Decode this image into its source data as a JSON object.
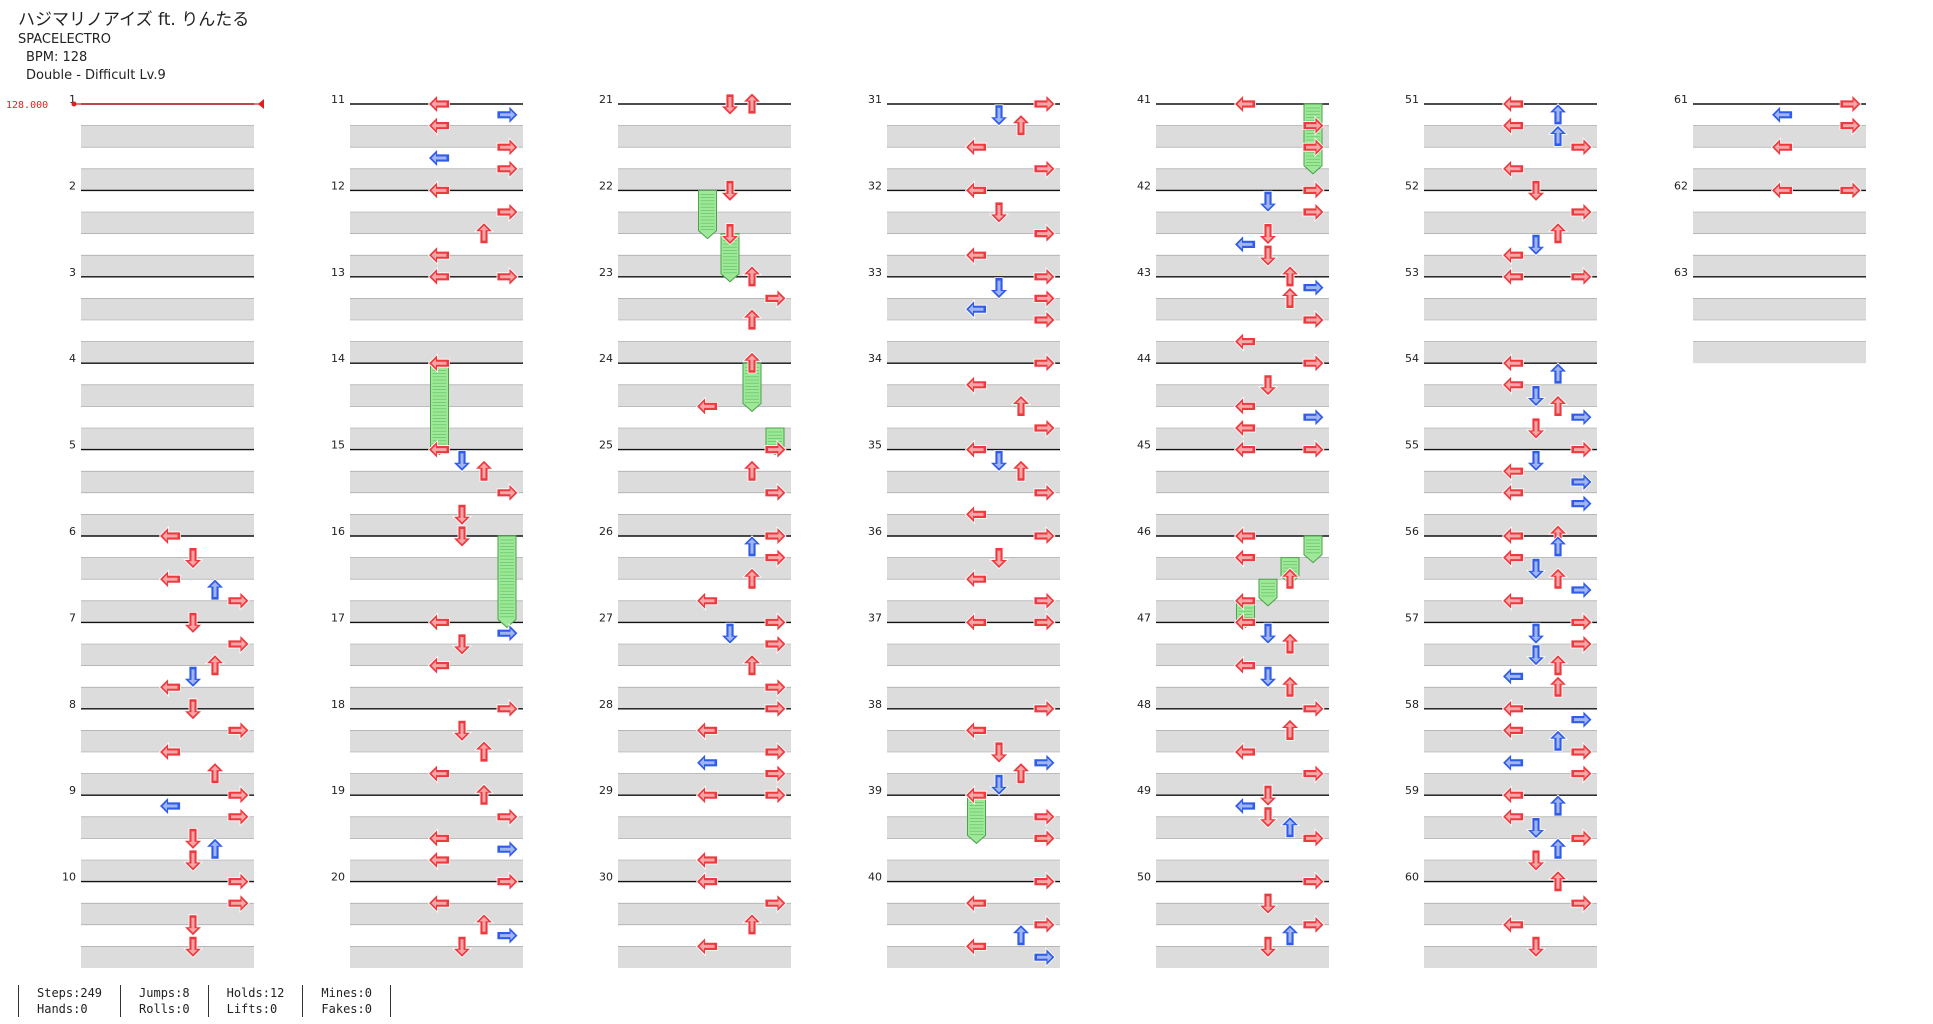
{
  "song": {
    "title": "ハジマリノアイズ ft. りんたる",
    "artist": "SPACELECTRO",
    "bpm_label": "BPM: 128",
    "difficulty_label": "Double - Difficult  Lv.9"
  },
  "bpm_marker": "128.000",
  "colors": {
    "quarter": "#ee3a3f",
    "eighth": "#2f5ce8",
    "hold": "#9fe89a",
    "beat_band": "#dcdcdc",
    "bpm": "#e02020"
  },
  "measures_per_column": 10,
  "total_measures": 63,
  "measure_labels": [
    "1",
    "2",
    "3",
    "4",
    "5",
    "6",
    "7",
    "8",
    "9",
    "10",
    "11",
    "12",
    "13",
    "14",
    "15",
    "16",
    "17",
    "18",
    "19",
    "20",
    "21",
    "22",
    "23",
    "24",
    "25",
    "26",
    "27",
    "28",
    "29",
    "30",
    "31",
    "32",
    "33",
    "34",
    "35",
    "36",
    "37",
    "38",
    "39",
    "40",
    "41",
    "42",
    "43",
    "44",
    "45",
    "46",
    "47",
    "48",
    "49",
    "50",
    "51",
    "52",
    "53",
    "54",
    "55",
    "56",
    "57",
    "58",
    "59",
    "60",
    "61",
    "62",
    "63"
  ],
  "notes": [
    [
      6,
      0,
      "L",
      "q"
    ],
    [
      6,
      0.25,
      "D",
      "q"
    ],
    [
      6,
      0.5,
      "L",
      "q"
    ],
    [
      6,
      0.625,
      "U",
      "e"
    ],
    [
      6,
      0.75,
      "R",
      "q"
    ],
    [
      7,
      0,
      "D",
      "q"
    ],
    [
      7,
      0.25,
      "R",
      "q"
    ],
    [
      7,
      0.5,
      "U",
      "q"
    ],
    [
      7,
      0.625,
      "D",
      "e"
    ],
    [
      7,
      0.75,
      "L",
      "q"
    ],
    [
      8,
      0,
      "D",
      "q"
    ],
    [
      8,
      0.25,
      "R",
      "q"
    ],
    [
      8,
      0.5,
      "L",
      "q"
    ],
    [
      8,
      0.75,
      "U",
      "q"
    ],
    [
      9,
      0,
      "R",
      "q"
    ],
    [
      9,
      0.125,
      "L",
      "e"
    ],
    [
      9,
      0.25,
      "R",
      "q"
    ],
    [
      9,
      0.5,
      "D",
      "q"
    ],
    [
      9,
      0.625,
      "U",
      "e"
    ],
    [
      9,
      0.75,
      "D",
      "q"
    ],
    [
      10,
      0,
      "R",
      "q"
    ],
    [
      10,
      0.25,
      "R",
      "q"
    ],
    [
      10,
      0.5,
      "D",
      "q"
    ],
    [
      10,
      0.75,
      "D",
      "q"
    ],
    [
      11,
      0,
      "L",
      "q"
    ],
    [
      11,
      0.125,
      "R",
      "e"
    ],
    [
      11,
      0.25,
      "L",
      "q"
    ],
    [
      11,
      0.5,
      "R",
      "q"
    ],
    [
      11,
      0.625,
      "L",
      "e"
    ],
    [
      11,
      0.75,
      "R",
      "q"
    ],
    [
      12,
      0,
      "L",
      "q"
    ],
    [
      12,
      0.25,
      "R",
      "q"
    ],
    [
      12,
      0.5,
      "U",
      "q"
    ],
    [
      12,
      0.75,
      "L",
      "q"
    ],
    [
      13,
      0,
      "L",
      "q"
    ],
    [
      13,
      0,
      "R",
      "q"
    ],
    [
      14,
      0,
      "L",
      "q"
    ],
    [
      15,
      0,
      "L",
      "q"
    ],
    [
      15,
      0.125,
      "D",
      "e"
    ],
    [
      15,
      0.25,
      "U",
      "q"
    ],
    [
      15,
      0.5,
      "R",
      "q"
    ],
    [
      15,
      0.75,
      "D",
      "q"
    ],
    [
      16,
      0,
      "D",
      "q"
    ],
    [
      17,
      0,
      "L",
      "q"
    ],
    [
      17,
      0.125,
      "R",
      "e"
    ],
    [
      17,
      0.25,
      "D",
      "q"
    ],
    [
      17,
      0.5,
      "L",
      "q"
    ],
    [
      18,
      0,
      "R",
      "q"
    ],
    [
      18,
      0.25,
      "D",
      "q"
    ],
    [
      18,
      0.5,
      "U",
      "q"
    ],
    [
      18,
      0.75,
      "L",
      "q"
    ],
    [
      19,
      0,
      "U",
      "q"
    ],
    [
      19,
      0.25,
      "R",
      "q"
    ],
    [
      19,
      0.5,
      "L",
      "q"
    ],
    [
      19,
      0.625,
      "R",
      "e"
    ],
    [
      19,
      0.75,
      "L",
      "q"
    ],
    [
      20,
      0,
      "R",
      "q"
    ],
    [
      20,
      0.25,
      "L",
      "q"
    ],
    [
      20,
      0.5,
      "U",
      "q"
    ],
    [
      20,
      0.625,
      "R",
      "e"
    ],
    [
      20,
      0.75,
      "D",
      "q"
    ],
    [
      21,
      0,
      "D",
      "q"
    ],
    [
      21,
      0,
      "U",
      "q"
    ],
    [
      22,
      0,
      "D",
      "q"
    ],
    [
      22,
      0.5,
      "D",
      "q"
    ],
    [
      23,
      0,
      "U",
      "q"
    ],
    [
      23,
      0.25,
      "R",
      "q"
    ],
    [
      23,
      0.5,
      "U",
      "q"
    ],
    [
      24,
      0,
      "U",
      "q"
    ],
    [
      24,
      0.5,
      "L",
      "q"
    ],
    [
      25,
      0,
      "R",
      "q"
    ],
    [
      25,
      0.25,
      "U",
      "q"
    ],
    [
      25,
      0.5,
      "R",
      "q"
    ],
    [
      26,
      0,
      "R",
      "q"
    ],
    [
      26,
      0.125,
      "U",
      "e"
    ],
    [
      26,
      0.25,
      "R",
      "q"
    ],
    [
      26,
      0.5,
      "U",
      "q"
    ],
    [
      26,
      0.75,
      "L",
      "q"
    ],
    [
      27,
      0,
      "R",
      "q"
    ],
    [
      27,
      0.125,
      "D",
      "e"
    ],
    [
      27,
      0.25,
      "R",
      "q"
    ],
    [
      27,
      0.5,
      "U",
      "q"
    ],
    [
      27,
      0.75,
      "R",
      "q"
    ],
    [
      28,
      0,
      "R",
      "q"
    ],
    [
      28,
      0.25,
      "L",
      "q"
    ],
    [
      28,
      0.5,
      "R",
      "q"
    ],
    [
      28,
      0.625,
      "L",
      "e"
    ],
    [
      28,
      0.75,
      "R",
      "q"
    ],
    [
      29,
      0,
      "R",
      "q"
    ],
    [
      29,
      0,
      "L",
      "q"
    ],
    [
      29,
      0.75,
      "L",
      "q"
    ],
    [
      30,
      0,
      "L",
      "q"
    ],
    [
      30,
      0.25,
      "R",
      "q"
    ],
    [
      30,
      0.5,
      "U",
      "q"
    ],
    [
      30,
      0.75,
      "L",
      "q"
    ],
    [
      31,
      0,
      "R",
      "q"
    ],
    [
      31,
      0.125,
      "D",
      "e"
    ],
    [
      31,
      0.25,
      "U",
      "q"
    ],
    [
      31,
      0.5,
      "L",
      "q"
    ],
    [
      31,
      0.75,
      "R",
      "q"
    ],
    [
      32,
      0,
      "L",
      "q"
    ],
    [
      32,
      0.25,
      "D",
      "q"
    ],
    [
      32,
      0.5,
      "R",
      "q"
    ],
    [
      32,
      0.75,
      "L",
      "q"
    ],
    [
      33,
      0,
      "R",
      "q"
    ],
    [
      33,
      0.125,
      "D",
      "e"
    ],
    [
      33,
      0.25,
      "R",
      "q"
    ],
    [
      33,
      0.375,
      "L",
      "e"
    ],
    [
      33,
      0.5,
      "R",
      "q"
    ],
    [
      34,
      0,
      "R",
      "q"
    ],
    [
      34,
      0.25,
      "L",
      "q"
    ],
    [
      34,
      0.5,
      "U",
      "q"
    ],
    [
      34,
      0.75,
      "R",
      "q"
    ],
    [
      35,
      0,
      "L",
      "q"
    ],
    [
      35,
      0.125,
      "D",
      "e"
    ],
    [
      35,
      0.25,
      "U",
      "q"
    ],
    [
      35,
      0.5,
      "R",
      "q"
    ],
    [
      35,
      0.75,
      "L",
      "q"
    ],
    [
      36,
      0,
      "R",
      "q"
    ],
    [
      36,
      0.25,
      "D",
      "q"
    ],
    [
      36,
      0.5,
      "L",
      "q"
    ],
    [
      36,
      0.75,
      "R",
      "q"
    ],
    [
      37,
      0,
      "R",
      "q"
    ],
    [
      37,
      0,
      "L",
      "q"
    ],
    [
      38,
      0,
      "R",
      "q"
    ],
    [
      38,
      0.25,
      "L",
      "q"
    ],
    [
      38,
      0.5,
      "D",
      "q"
    ],
    [
      38,
      0.625,
      "R",
      "e"
    ],
    [
      38,
      0.75,
      "U",
      "q"
    ],
    [
      38,
      0.875,
      "D",
      "e"
    ],
    [
      39,
      0,
      "L",
      "q"
    ],
    [
      39,
      0.25,
      "R",
      "q"
    ],
    [
      39,
      0.5,
      "R",
      "q"
    ],
    [
      40,
      0,
      "R",
      "q"
    ],
    [
      40,
      0.25,
      "L",
      "q"
    ],
    [
      40,
      0.5,
      "R",
      "q"
    ],
    [
      40,
      0.625,
      "U",
      "e"
    ],
    [
      40,
      0.75,
      "L",
      "q"
    ],
    [
      40,
      0.875,
      "R",
      "e"
    ],
    [
      41,
      0,
      "L",
      "q"
    ],
    [
      41,
      0.25,
      "R",
      "q"
    ],
    [
      41,
      0.5,
      "R",
      "q"
    ],
    [
      42,
      0,
      "R",
      "q"
    ],
    [
      42,
      0.125,
      "D",
      "e"
    ],
    [
      42,
      0.25,
      "R",
      "q"
    ],
    [
      42,
      0.5,
      "D",
      "q"
    ],
    [
      42,
      0.625,
      "L",
      "e"
    ],
    [
      42,
      0.75,
      "D",
      "q"
    ],
    [
      43,
      0,
      "U",
      "q"
    ],
    [
      43,
      0.125,
      "R",
      "e"
    ],
    [
      43,
      0.25,
      "U",
      "q"
    ],
    [
      43,
      0.5,
      "R",
      "q"
    ],
    [
      43,
      0.75,
      "L",
      "q"
    ],
    [
      44,
      0,
      "R",
      "q"
    ],
    [
      44,
      0.25,
      "D",
      "q"
    ],
    [
      44,
      0.5,
      "L",
      "q"
    ],
    [
      44,
      0.625,
      "R",
      "e"
    ],
    [
      44,
      0.75,
      "L",
      "q"
    ],
    [
      45,
      0,
      "R",
      "q"
    ],
    [
      45,
      0,
      "L",
      "q"
    ],
    [
      46,
      0,
      "L",
      "q"
    ],
    [
      46,
      0.25,
      "L",
      "q"
    ],
    [
      46,
      0.5,
      "U",
      "q"
    ],
    [
      46,
      0.75,
      "L",
      "q"
    ],
    [
      47,
      0,
      "L",
      "q"
    ],
    [
      47,
      0.125,
      "D",
      "e"
    ],
    [
      47,
      0.25,
      "U",
      "q"
    ],
    [
      47,
      0.5,
      "L",
      "q"
    ],
    [
      47,
      0.625,
      "D",
      "e"
    ],
    [
      47,
      0.75,
      "U",
      "q"
    ],
    [
      48,
      0,
      "R",
      "q"
    ],
    [
      48,
      0.25,
      "U",
      "q"
    ],
    [
      48,
      0.5,
      "L",
      "q"
    ],
    [
      48,
      0.75,
      "R",
      "q"
    ],
    [
      49,
      0,
      "D",
      "q"
    ],
    [
      49,
      0.125,
      "L",
      "e"
    ],
    [
      49,
      0.25,
      "D",
      "q"
    ],
    [
      49,
      0.375,
      "U",
      "e"
    ],
    [
      49,
      0.5,
      "R",
      "q"
    ],
    [
      50,
      0,
      "R",
      "q"
    ],
    [
      50,
      0.25,
      "D",
      "q"
    ],
    [
      50,
      0.5,
      "R",
      "q"
    ],
    [
      50,
      0.625,
      "U",
      "e"
    ],
    [
      50,
      0.75,
      "D",
      "q"
    ],
    [
      51,
      0,
      "L",
      "q"
    ],
    [
      51,
      0.125,
      "U",
      "e"
    ],
    [
      51,
      0.25,
      "L",
      "q"
    ],
    [
      51,
      0.375,
      "U",
      "e"
    ],
    [
      51,
      0.5,
      "R",
      "q"
    ],
    [
      51,
      0.75,
      "L",
      "q"
    ],
    [
      52,
      0,
      "D",
      "q"
    ],
    [
      52,
      0.25,
      "R",
      "q"
    ],
    [
      52,
      0.5,
      "U",
      "q"
    ],
    [
      52,
      0.625,
      "D",
      "e"
    ],
    [
      52,
      0.75,
      "L",
      "q"
    ],
    [
      53,
      0,
      "L",
      "q"
    ],
    [
      53,
      0,
      "R",
      "q"
    ],
    [
      54,
      0,
      "L",
      "q"
    ],
    [
      54,
      0.125,
      "U",
      "e"
    ],
    [
      54,
      0.25,
      "L",
      "q"
    ],
    [
      54,
      0.375,
      "D",
      "e"
    ],
    [
      54,
      0.5,
      "U",
      "q"
    ],
    [
      54,
      0.625,
      "R",
      "e"
    ],
    [
      54,
      0.75,
      "D",
      "q"
    ],
    [
      55,
      0,
      "R",
      "q"
    ],
    [
      55,
      0.125,
      "D",
      "e"
    ],
    [
      55,
      0.25,
      "L",
      "q"
    ],
    [
      55,
      0.375,
      "R",
      "e"
    ],
    [
      55,
      0.5,
      "L",
      "q"
    ],
    [
      55,
      0.625,
      "R",
      "e"
    ],
    [
      56,
      0,
      "U",
      "q"
    ],
    [
      56,
      0,
      "L",
      "q"
    ],
    [
      56,
      0.125,
      "U",
      "e"
    ],
    [
      56,
      0.25,
      "L",
      "q"
    ],
    [
      56,
      0.375,
      "D",
      "e"
    ],
    [
      56,
      0.5,
      "U",
      "q"
    ],
    [
      56,
      0.625,
      "R",
      "e"
    ],
    [
      56,
      0.75,
      "L",
      "q"
    ],
    [
      57,
      0,
      "R",
      "q"
    ],
    [
      57,
      0.125,
      "D",
      "e"
    ],
    [
      57,
      0.25,
      "R",
      "q"
    ],
    [
      57,
      0.375,
      "D",
      "e"
    ],
    [
      57,
      0.5,
      "U",
      "q"
    ],
    [
      57,
      0.625,
      "L",
      "e"
    ],
    [
      57,
      0.75,
      "U",
      "q"
    ],
    [
      58,
      0,
      "L",
      "q"
    ],
    [
      58,
      0.125,
      "R",
      "e"
    ],
    [
      58,
      0.25,
      "L",
      "q"
    ],
    [
      58,
      0.375,
      "U",
      "e"
    ],
    [
      58,
      0.5,
      "R",
      "q"
    ],
    [
      58,
      0.625,
      "L",
      "e"
    ],
    [
      58,
      0.75,
      "R",
      "q"
    ],
    [
      59,
      0,
      "L",
      "q"
    ],
    [
      59,
      0.125,
      "U",
      "e"
    ],
    [
      59,
      0.25,
      "L",
      "q"
    ],
    [
      59,
      0.375,
      "D",
      "e"
    ],
    [
      59,
      0.5,
      "R",
      "q"
    ],
    [
      59,
      0.625,
      "U",
      "e"
    ],
    [
      59,
      0.75,
      "D",
      "q"
    ],
    [
      60,
      0,
      "U",
      "q"
    ],
    [
      60,
      0.25,
      "R",
      "q"
    ],
    [
      60,
      0.5,
      "L",
      "q"
    ],
    [
      60,
      0.75,
      "D",
      "q"
    ],
    [
      61,
      0,
      "R",
      "q"
    ],
    [
      61,
      0.125,
      "L",
      "e"
    ],
    [
      61,
      0.25,
      "R",
      "q"
    ],
    [
      61,
      0.5,
      "L",
      "q"
    ],
    [
      62,
      0,
      "R",
      "q"
    ],
    [
      62,
      0,
      "L",
      "q"
    ]
  ],
  "holds": [
    [
      14,
      0,
      15,
      0,
      "L"
    ],
    [
      16,
      0,
      17,
      0,
      "R"
    ],
    [
      22,
      0,
      22,
      0.5,
      "L"
    ],
    [
      22,
      0.5,
      23,
      0,
      "D"
    ],
    [
      24,
      0,
      24,
      0.5,
      "U"
    ],
    [
      24,
      0.75,
      25,
      0,
      "R"
    ],
    [
      39,
      0,
      39,
      0.5,
      "L"
    ],
    [
      41,
      0,
      41,
      0.75,
      "R"
    ],
    [
      46,
      0,
      46,
      0.25,
      "R"
    ],
    [
      46,
      0.25,
      46,
      0.5,
      "U"
    ],
    [
      46,
      0.5,
      46,
      0.75,
      "D"
    ],
    [
      46,
      0.75,
      47,
      0,
      "L"
    ]
  ],
  "stats": [
    {
      "a": "Steps:249",
      "b": "Hands:0"
    },
    {
      "a": "Jumps:8",
      "b": "Rolls:0"
    },
    {
      "a": "Holds:12",
      "b": "Lifts:0"
    },
    {
      "a": "Mines:0",
      "b": "Fakes:0"
    }
  ]
}
